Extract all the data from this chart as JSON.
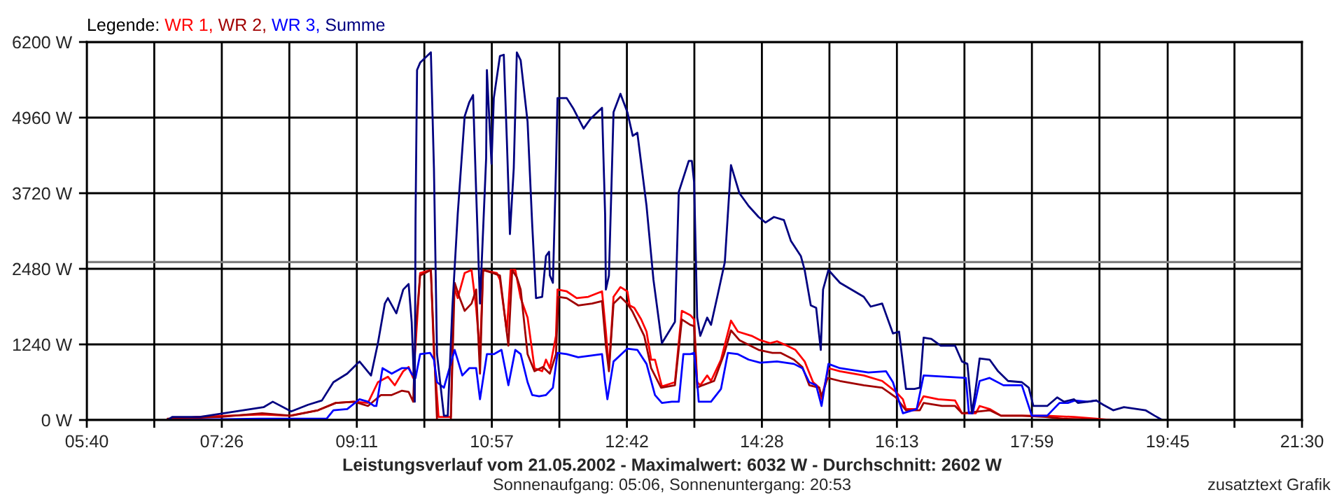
{
  "chart_data": {
    "type": "line",
    "title": "Leistungsverlauf vom 21.05.2002 - Maximalwert: 6032 W - Durchschnitt: 2602 W",
    "subtitle": "Sonnenaufgang: 05:06, Sonnenuntergang: 20:53",
    "annotations": [
      "zusatztext Grafik"
    ],
    "legend_title": "Legende:",
    "legend": "top left",
    "grid": true,
    "line_style": "solid",
    "xlim": [
      5.667,
      21.5
    ],
    "xticks": [
      {
        "value": 5.667,
        "label": "05:40"
      },
      {
        "value": 6.546,
        "label": null
      },
      {
        "value": 7.426,
        "label": "07:26"
      },
      {
        "value": 8.306,
        "label": null
      },
      {
        "value": 9.185,
        "label": "09:11"
      },
      {
        "value": 10.065,
        "label": null
      },
      {
        "value": 10.944,
        "label": "10:57"
      },
      {
        "value": 11.824,
        "label": null
      },
      {
        "value": 12.704,
        "label": "12:42"
      },
      {
        "value": 13.583,
        "label": null
      },
      {
        "value": 14.463,
        "label": "14:28"
      },
      {
        "value": 15.343,
        "label": null
      },
      {
        "value": 16.222,
        "label": "16:13"
      },
      {
        "value": 17.102,
        "label": null
      },
      {
        "value": 17.981,
        "label": "17:59"
      },
      {
        "value": 18.861,
        "label": null
      },
      {
        "value": 19.75,
        "label": "19:45"
      },
      {
        "value": 20.62,
        "label": null
      },
      {
        "value": 21.5,
        "label": "21:30"
      }
    ],
    "ylim": [
      0,
      6200
    ],
    "yticks": [
      {
        "value": 0,
        "label": "0 W"
      },
      {
        "value": 1240,
        "label": "1240 W"
      },
      {
        "value": 2480,
        "label": "2480 W"
      },
      {
        "value": 3720,
        "label": "3720 W"
      },
      {
        "value": 4960,
        "label": "4960 W"
      },
      {
        "value": 6200,
        "label": "6200 W"
      }
    ],
    "ref_lines": [
      {
        "axis": "y",
        "value": 2590,
        "color": "#808080"
      }
    ],
    "series": [
      {
        "name": "WR 1,",
        "color": "#ff0000",
        "x": [
          6.72,
          7.09,
          7.95,
          8.31,
          8.68,
          8.91,
          9.15,
          9.33,
          9.46,
          9.59,
          9.68,
          9.79,
          9.86,
          9.92,
          9.95,
          10.01,
          10.15,
          10.19,
          10.25,
          10.41,
          10.45,
          10.5,
          10.59,
          10.68,
          10.74,
          10.79,
          10.83,
          11.01,
          11.05,
          11.14,
          11.19,
          11.25,
          11.32,
          11.41,
          11.5,
          11.6,
          11.65,
          11.7,
          11.78,
          11.8,
          11.92,
          12.05,
          12.2,
          12.38,
          12.43,
          12.47,
          12.53,
          12.62,
          12.71,
          12.74,
          12.8,
          12.89,
          12.96,
          13.02,
          13.07,
          13.16,
          13.33,
          13.42,
          13.53,
          13.58,
          13.62,
          13.66,
          13.75,
          13.8,
          13.93,
          14.06,
          14.15,
          14.33,
          14.44,
          14.57,
          14.66,
          14.79,
          14.9,
          15.02,
          15.13,
          15.21,
          15.24,
          15.33,
          15.48,
          15.79,
          16.03,
          16.21,
          16.3,
          16.34,
          16.48,
          16.57,
          16.76,
          16.98,
          17.07,
          17.25,
          17.3,
          17.43,
          17.58,
          18.16,
          18.53,
          18.82,
          19.0
        ],
        "values": [
          0,
          50,
          90,
          70,
          160,
          280,
          300,
          280,
          620,
          710,
          570,
          800,
          870,
          690,
          1220,
          2410,
          2460,
          1080,
          50,
          50,
          2180,
          2000,
          2410,
          2460,
          1840,
          1080,
          2460,
          2410,
          2300,
          1450,
          2460,
          2460,
          2000,
          1680,
          850,
          800,
          990,
          850,
          1380,
          2140,
          2110,
          2000,
          2020,
          2110,
          1450,
          850,
          2020,
          2180,
          2110,
          1880,
          1840,
          1650,
          1450,
          990,
          990,
          550,
          620,
          1790,
          1720,
          1650,
          620,
          570,
          730,
          640,
          990,
          1630,
          1450,
          1380,
          1310,
          1260,
          1290,
          1220,
          1150,
          960,
          620,
          530,
          340,
          850,
          800,
          730,
          640,
          460,
          340,
          180,
          180,
          390,
          340,
          320,
          110,
          110,
          230,
          180,
          70,
          70,
          50,
          20,
          0
        ]
      },
      {
        "name": "WR 2,",
        "color": "#a00000",
        "x": [
          6.72,
          7.4,
          7.95,
          8.33,
          8.68,
          8.91,
          9.15,
          9.33,
          9.5,
          9.64,
          9.77,
          9.86,
          9.92,
          9.95,
          10.01,
          10.15,
          10.23,
          10.41,
          10.46,
          10.52,
          10.59,
          10.68,
          10.74,
          10.79,
          10.83,
          10.96,
          11.05,
          11.16,
          11.21,
          11.27,
          11.32,
          11.41,
          11.5,
          11.61,
          11.7,
          11.78,
          11.81,
          11.92,
          12.07,
          12.25,
          12.38,
          12.43,
          12.47,
          12.53,
          12.62,
          12.71,
          12.78,
          12.93,
          13.02,
          13.15,
          13.33,
          13.42,
          13.53,
          13.58,
          13.62,
          13.69,
          13.84,
          13.97,
          14.06,
          14.17,
          14.42,
          14.6,
          14.71,
          14.88,
          14.99,
          15.08,
          15.21,
          15.24,
          15.32,
          15.48,
          15.79,
          16.03,
          16.21,
          16.34,
          16.52,
          16.57,
          16.81,
          16.98,
          17.07,
          17.43,
          17.58,
          17.85,
          18.16,
          18.4,
          19.0
        ],
        "values": [
          20,
          50,
          110,
          70,
          160,
          280,
          300,
          230,
          410,
          410,
          480,
          460,
          300,
          1450,
          2370,
          2460,
          0,
          0,
          2250,
          2020,
          1790,
          1910,
          2140,
          760,
          2460,
          2410,
          2370,
          1220,
          2460,
          2340,
          2140,
          1080,
          800,
          870,
          760,
          1080,
          2020,
          2000,
          1880,
          1910,
          1950,
          1220,
          800,
          1910,
          2020,
          1910,
          1770,
          1380,
          850,
          530,
          570,
          1650,
          1560,
          1540,
          530,
          570,
          640,
          1080,
          1470,
          1310,
          1150,
          1100,
          1100,
          990,
          870,
          570,
          530,
          390,
          690,
          640,
          570,
          530,
          370,
          160,
          160,
          280,
          230,
          230,
          110,
          160,
          70,
          70,
          50,
          20,
          0
        ]
      },
      {
        "name": "WR 3,",
        "color": "#0000ff",
        "x": [
          6.72,
          7.91,
          8.42,
          8.79,
          8.88,
          9.06,
          9.22,
          9.33,
          9.41,
          9.44,
          9.52,
          9.64,
          9.77,
          9.86,
          9.9,
          9.95,
          10.01,
          10.14,
          10.19,
          10.23,
          10.32,
          10.46,
          10.56,
          10.65,
          10.74,
          10.79,
          10.88,
          10.97,
          11.07,
          11.16,
          11.25,
          11.32,
          11.41,
          11.47,
          11.56,
          11.65,
          11.74,
          11.8,
          11.92,
          12.07,
          12.38,
          12.42,
          12.45,
          12.53,
          12.71,
          12.84,
          12.96,
          13.07,
          13.16,
          13.29,
          13.38,
          13.44,
          13.53,
          13.58,
          13.62,
          13.64,
          13.8,
          13.93,
          14.02,
          14.15,
          14.29,
          14.44,
          14.66,
          14.88,
          14.99,
          15.08,
          15.17,
          15.24,
          15.33,
          15.48,
          15.85,
          16.08,
          16.17,
          16.3,
          16.48,
          16.57,
          17.12,
          17.16,
          17.21,
          17.3,
          17.43,
          17.61,
          17.85,
          17.98,
          18.18,
          18.34,
          18.45,
          18.54,
          18.71,
          18.82
        ],
        "values": [
          0,
          20,
          20,
          20,
          160,
          180,
          340,
          300,
          230,
          230,
          850,
          760,
          850,
          850,
          760,
          690,
          1080,
          1100,
          990,
          620,
          530,
          1150,
          730,
          850,
          850,
          340,
          1080,
          1080,
          1150,
          570,
          1150,
          1080,
          620,
          410,
          390,
          410,
          530,
          1100,
          1080,
          1030,
          1080,
          620,
          340,
          960,
          1170,
          1150,
          920,
          410,
          280,
          300,
          300,
          1080,
          1080,
          1100,
          620,
          300,
          300,
          510,
          1100,
          1080,
          990,
          940,
          960,
          920,
          850,
          620,
          570,
          230,
          920,
          850,
          780,
          800,
          620,
          110,
          180,
          730,
          690,
          110,
          110,
          640,
          690,
          570,
          570,
          70,
          70,
          280,
          280,
          320,
          300,
          320
        ]
      },
      {
        "name": "Summe",
        "color": "#000080",
        "x": [
          6.72,
          6.78,
          7.14,
          7.97,
          8.09,
          8.33,
          8.55,
          8.73,
          8.88,
          9.06,
          9.22,
          9.37,
          9.46,
          9.55,
          9.59,
          9.7,
          9.79,
          9.86,
          9.9,
          9.94,
          9.95,
          9.97,
          10.01,
          10.15,
          10.19,
          10.23,
          10.32,
          10.37,
          10.43,
          10.5,
          10.59,
          10.65,
          10.7,
          10.74,
          10.79,
          10.87,
          10.88,
          10.94,
          10.97,
          11.05,
          11.1,
          11.14,
          11.18,
          11.23,
          11.27,
          11.32,
          11.41,
          11.47,
          11.52,
          11.6,
          11.65,
          11.69,
          11.7,
          11.74,
          11.78,
          11.8,
          11.92,
          12.01,
          12.14,
          12.23,
          12.38,
          12.42,
          12.43,
          12.47,
          12.53,
          12.62,
          12.71,
          12.78,
          12.84,
          12.96,
          13.05,
          13.16,
          13.33,
          13.38,
          13.51,
          13.55,
          13.58,
          13.62,
          13.66,
          13.75,
          13.8,
          13.89,
          13.98,
          14.06,
          14.17,
          14.29,
          14.42,
          14.51,
          14.62,
          14.75,
          14.84,
          14.97,
          15.02,
          15.1,
          15.17,
          15.23,
          15.26,
          15.33,
          15.48,
          15.79,
          15.88,
          16.03,
          16.17,
          16.25,
          16.34,
          16.45,
          16.52,
          16.57,
          16.67,
          16.79,
          16.98,
          17.07,
          17.14,
          17.2,
          17.25,
          17.3,
          17.43,
          17.54,
          17.67,
          17.85,
          17.94,
          18.0,
          18.18,
          18.31,
          18.4,
          18.53,
          18.58,
          18.71,
          18.82,
          18.91,
          19.04,
          19.18,
          19.46,
          19.58,
          19.68
        ],
        "values": [
          0,
          50,
          50,
          210,
          300,
          140,
          250,
          320,
          620,
          760,
          960,
          730,
          1260,
          1910,
          2000,
          1750,
          2140,
          2230,
          1610,
          300,
          3280,
          5740,
          5860,
          6030,
          4130,
          1080,
          70,
          70,
          1840,
          3380,
          4980,
          5210,
          5330,
          3740,
          1910,
          4290,
          5740,
          4200,
          5280,
          5970,
          5990,
          4590,
          3050,
          4130,
          6030,
          5900,
          4890,
          3210,
          2000,
          2020,
          2690,
          2760,
          2370,
          2250,
          4130,
          5280,
          5280,
          5100,
          4780,
          4940,
          5120,
          3380,
          2140,
          2370,
          5050,
          5350,
          5050,
          4660,
          4710,
          3510,
          2300,
          1260,
          1610,
          3740,
          4250,
          4250,
          3900,
          1680,
          1380,
          1680,
          1560,
          2070,
          2590,
          4180,
          3720,
          3510,
          3330,
          3240,
          3330,
          3280,
          2940,
          2690,
          2460,
          1880,
          1840,
          1150,
          2140,
          2460,
          2250,
          2020,
          1860,
          1910,
          1420,
          1450,
          510,
          510,
          530,
          1350,
          1330,
          1220,
          1220,
          960,
          920,
          110,
          530,
          1010,
          990,
          800,
          640,
          620,
          530,
          230,
          230,
          370,
          300,
          340,
          280,
          300,
          320,
          250,
          160,
          210,
          160,
          70,
          0
        ]
      }
    ]
  }
}
